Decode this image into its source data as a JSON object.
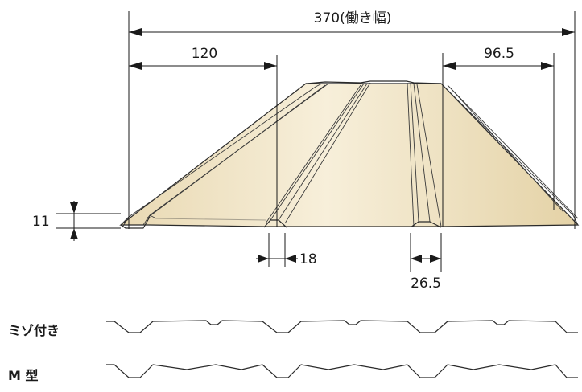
{
  "dimensions": {
    "working_width": "370(働き幅)",
    "rib_pitch_left": "120",
    "rib_pitch_right": "96.5",
    "height": "11",
    "rib_bottom_width_small": "18",
    "rib_bottom_width_large": "26.5"
  },
  "profiles": {
    "grooved_label": "ミゾ付き",
    "m_type_label": "M 型"
  },
  "colors": {
    "panel_fill": "#efe3c4",
    "panel_light": "#f8f1de",
    "panel_shadow": "#d6c39a",
    "line": "#1a1a1a"
  }
}
